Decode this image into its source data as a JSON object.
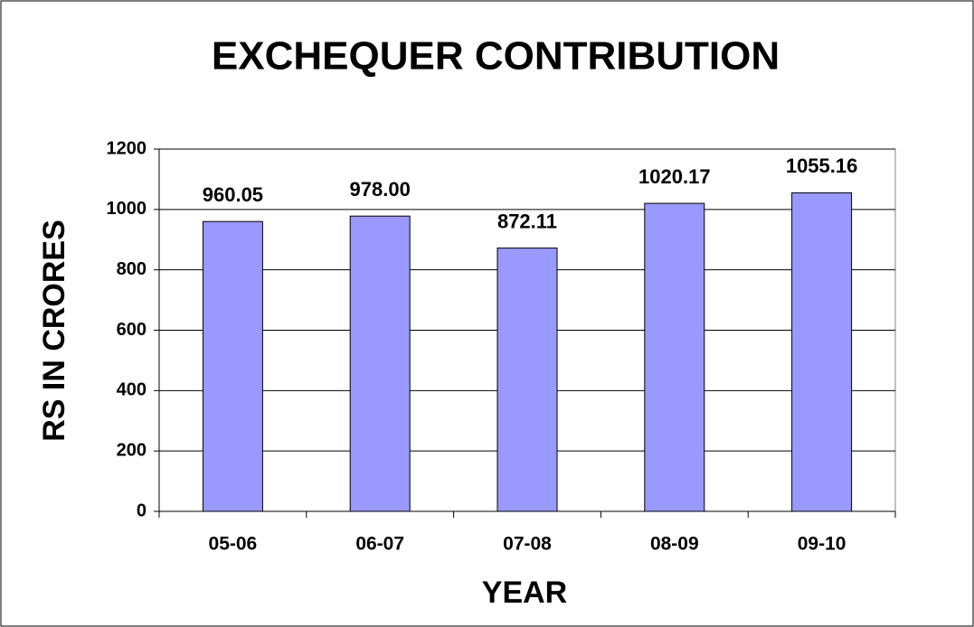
{
  "chart_data": {
    "type": "bar",
    "title": "EXCHEQUER CONTRIBUTION",
    "x_label": "YEAR",
    "y_label": "RS IN CRORES",
    "categories": [
      "05-06",
      "06-07",
      "07-08",
      "08-09",
      "09-10"
    ],
    "values": [
      960.05,
      978.0,
      872.11,
      1020.17,
      1055.16
    ],
    "value_labels": [
      "960.05",
      "978.00",
      "872.11",
      "1020.17",
      "1055.16"
    ],
    "color": "#9999ff",
    "ylim": [
      0,
      1200
    ],
    "yticks": [
      0,
      200,
      400,
      600,
      800,
      1000,
      1200
    ],
    "grid": true
  }
}
